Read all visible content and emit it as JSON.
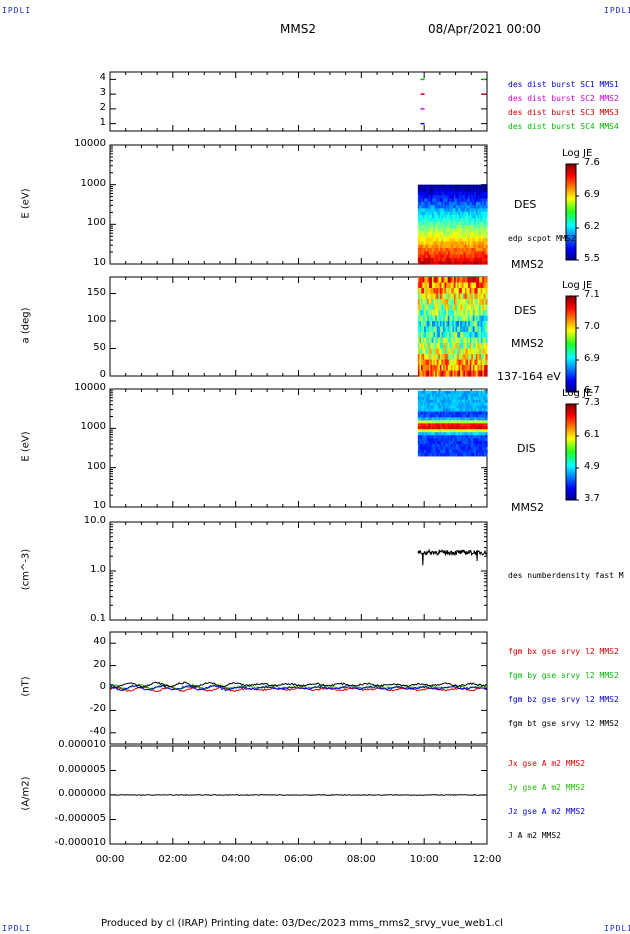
{
  "page": {
    "corner_tl": "IPDLI",
    "corner_tr": "IPDLI",
    "corner_bl": "IPDLI",
    "corner_br": "IPDLI",
    "title": "MMS2",
    "date": "08/Apr/2021 00:00",
    "footer": "Produced by cl (IRAP)   Printing date: 03/Dec/2023   mms_mms2_srvy_vue_web1.cl"
  },
  "colors": {
    "mms1": "#0000cc",
    "mms2": "#cc00cc",
    "mms3": "#cc0000",
    "mms4": "#00bb00",
    "bx": "#dd0000",
    "by": "#00bb00",
    "bz": "#0000dd",
    "bt": "#000000",
    "jx": "#dd0000",
    "jy": "#22bb00",
    "jz": "#0000dd",
    "j": "#000000"
  },
  "chart_data": [
    {
      "id": "burst",
      "type": "scatter",
      "ylim": [
        0.5,
        4.5
      ],
      "yticks": [
        "1",
        "2",
        "3",
        "4"
      ],
      "series": [
        {
          "name": "des dist burst SC1 MMS1",
          "color": "#0000cc",
          "y": 1,
          "x": [
            9.95
          ]
        },
        {
          "name": "des dist burst SC2 MMS2",
          "color": "#cc00cc",
          "y": 2,
          "x": [
            9.95
          ]
        },
        {
          "name": "des dist burst SC3 MMS3",
          "color": "#cc0000",
          "y": 3,
          "x": [
            9.95,
            11.9
          ]
        },
        {
          "name": "des dist burst SC4 MMS4",
          "color": "#00bb00",
          "y": 4,
          "x": [
            9.95,
            11.9
          ]
        }
      ]
    },
    {
      "id": "des_energy",
      "type": "heatmap",
      "ylabel": "E (eV)",
      "yticks": [
        "10000",
        "1000",
        "100",
        "10"
      ],
      "colorbar_title": "Log JE",
      "colorbar_ticks": [
        "7.6",
        "6.9",
        "6.2",
        "5.5"
      ],
      "label_top": "DES",
      "label_mid": "edp scpot MMS2",
      "label_bottom": "MMS2",
      "x_range": [
        9.8,
        12.0
      ]
    },
    {
      "id": "des_pitch",
      "type": "heatmap",
      "ylabel": "a (deg)",
      "yticks": [
        "150",
        "100",
        "50",
        "0"
      ],
      "colorbar_title": "Log JE",
      "colorbar_ticks": [
        "7.1",
        "7.0",
        "6.9",
        "6.7"
      ],
      "label_top": "DES",
      "label_mid": "MMS2",
      "label_bottom": "137-164 eV",
      "x_range": [
        9.8,
        12.0
      ]
    },
    {
      "id": "dis_energy",
      "type": "heatmap",
      "ylabel": "E (eV)",
      "yticks": [
        "10000",
        "1000",
        "100",
        "10"
      ],
      "colorbar_title": "Log JE",
      "colorbar_ticks": [
        "7.3",
        "6.1",
        "4.9",
        "3.7"
      ],
      "label_top": "DIS",
      "label_bottom": "MMS2",
      "x_range": [
        9.8,
        12.0
      ]
    },
    {
      "id": "density",
      "type": "line",
      "ylabel": "(cm^-3)",
      "yticks": [
        "10.0",
        "1.0",
        "0.1"
      ],
      "series": [
        {
          "name": "des numberdensity fast M",
          "x_range": [
            9.8,
            12.0
          ],
          "mean": 2.4
        }
      ]
    },
    {
      "id": "bfield",
      "type": "line",
      "ylabel": "(nT)",
      "ylim": [
        -50,
        50
      ],
      "yticks": [
        "40",
        "20",
        "0",
        "-20",
        "-40"
      ],
      "series": [
        {
          "name": "fgm bx gse srvy l2 MMS2",
          "color": "#dd0000",
          "mean": -1
        },
        {
          "name": "fgm by gse srvy l2 MMS2",
          "color": "#00bb00",
          "mean": 1
        },
        {
          "name": "fgm bz gse srvy l2 MMS2",
          "color": "#0000dd",
          "mean": 0
        },
        {
          "name": "fgm bt gse srvy l2 MMS2",
          "color": "#000000",
          "mean": 3
        }
      ]
    },
    {
      "id": "current",
      "type": "line",
      "ylabel": "(A/m2)",
      "ylim": [
        -1e-05,
        1e-05
      ],
      "yticks": [
        "0.000010",
        "0.000005",
        "0.000000",
        "-0.000005",
        "-0.000010"
      ],
      "series": [
        {
          "name": "Jx gse A m2 MMS2",
          "color": "#dd0000"
        },
        {
          "name": "Jy gse A m2 MMS2",
          "color": "#22bb00"
        },
        {
          "name": "Jz gse A m2 MMS2",
          "color": "#0000dd"
        },
        {
          "name": "J A m2 MMS2",
          "color": "#000000"
        }
      ]
    }
  ],
  "xaxis": {
    "range": [
      0,
      12
    ],
    "ticks": [
      "00:00",
      "02:00",
      "04:00",
      "06:00",
      "08:00",
      "10:00",
      "12:00"
    ]
  }
}
